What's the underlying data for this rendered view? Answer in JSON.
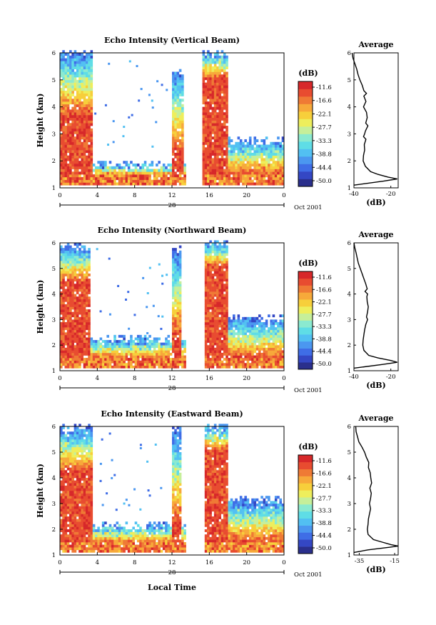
{
  "figure": {
    "date_label": "Oct 2001",
    "local_time_label": "Local Time",
    "day_label": "28",
    "colorbar_unit": "(dB)",
    "average_title": "Average",
    "average_xlabel": "(dB)",
    "ylabel": "Height (km)"
  },
  "colorbar": {
    "ticks": [
      "-11.6",
      "-16.6",
      "-22.1",
      "-27.7",
      "-33.3",
      "-38.8",
      "-44.4",
      "-50.0"
    ],
    "colors": [
      "#2a2f8c",
      "#3447c4",
      "#3f6de6",
      "#4b97f0",
      "#52c0f2",
      "#5fdde6",
      "#8bead0",
      "#c6ef9a",
      "#eeee5c",
      "#f7cf3b",
      "#f7a93a",
      "#ef7a35",
      "#e84c30",
      "#d7282a"
    ]
  },
  "chart_data": [
    {
      "type": "heatmap",
      "title": "Echo Intensity (Vertical Beam)",
      "ylabel": "Height (km)",
      "xticks": [
        "0",
        "4",
        "8",
        "12",
        "16",
        "20",
        "0"
      ],
      "yticks": [
        "1",
        "2",
        "3",
        "4",
        "5",
        "6"
      ],
      "xlim": [
        0,
        24
      ],
      "ylim": [
        1,
        6
      ],
      "colorbar_range_db": [
        -50.0,
        -11.6
      ],
      "echo_regions": [
        {
          "start_h": 0.0,
          "end_h": 3.4,
          "top_km": 6.0,
          "core_top_km": 3.6
        },
        {
          "start_h": 3.5,
          "end_h": 13.5,
          "top_km": 1.8,
          "core_top_km": 1.4
        },
        {
          "start_h": 12.0,
          "end_h": 13.2,
          "top_km": 5.3,
          "core_top_km": 2.2
        },
        {
          "start_h": 15.2,
          "end_h": 17.8,
          "top_km": 6.0,
          "core_top_km": 5.0
        },
        {
          "start_h": 17.8,
          "end_h": 24.0,
          "top_km": 2.7,
          "core_top_km": 1.4
        }
      ]
    },
    {
      "type": "line",
      "title": "Average",
      "xlabel": "(dB)",
      "ylabel": "Height (km)",
      "xticks": [
        "-40",
        "-20"
      ],
      "yticks": [
        "1",
        "2",
        "3",
        "4",
        "5",
        "6"
      ],
      "xlim": [
        -40,
        -16
      ],
      "ylim": [
        1,
        6
      ],
      "series": [
        {
          "points": [
            [
              -41.0,
              6.0
            ],
            [
              -40.5,
              5.8
            ],
            [
              -39.5,
              5.6
            ],
            [
              -38.5,
              5.4
            ],
            [
              -37.8,
              5.2
            ],
            [
              -36.8,
              5.0
            ],
            [
              -35.5,
              4.8
            ],
            [
              -34.6,
              4.6
            ],
            [
              -33.2,
              4.5
            ],
            [
              -34.6,
              4.4
            ],
            [
              -33.5,
              4.2
            ],
            [
              -34.8,
              4.0
            ],
            [
              -33.2,
              3.8
            ],
            [
              -32.8,
              3.6
            ],
            [
              -33.6,
              3.4
            ],
            [
              -32.4,
              3.3
            ],
            [
              -33.8,
              3.1
            ],
            [
              -34.2,
              3.0
            ],
            [
              -34.8,
              2.9
            ],
            [
              -33.5,
              2.8
            ],
            [
              -34.4,
              2.6
            ],
            [
              -34.2,
              2.4
            ],
            [
              -34.8,
              2.2
            ],
            [
              -35.0,
              2.0
            ],
            [
              -33.8,
              1.8
            ],
            [
              -31.0,
              1.6
            ],
            [
              -27.0,
              1.5
            ],
            [
              -21.5,
              1.4
            ],
            [
              -16.5,
              1.33
            ],
            [
              -24.0,
              1.25
            ],
            [
              -40.0,
              1.1
            ]
          ]
        }
      ]
    },
    {
      "type": "heatmap",
      "title": "Echo Intensity (Northward Beam)",
      "ylabel": "Height (km)",
      "xticks": [
        "0",
        "4",
        "8",
        "12",
        "16",
        "20",
        "0"
      ],
      "yticks": [
        "1",
        "2",
        "3",
        "4",
        "5",
        "6"
      ],
      "xlim": [
        0,
        24
      ],
      "ylim": [
        1,
        6
      ],
      "colorbar_range_db": [
        -50.0,
        -11.6
      ],
      "echo_regions": [
        {
          "start_h": 0.0,
          "end_h": 3.2,
          "top_km": 5.8,
          "core_top_km": 4.4
        },
        {
          "start_h": 3.2,
          "end_h": 13.5,
          "top_km": 2.2,
          "core_top_km": 1.4
        },
        {
          "start_h": 12.0,
          "end_h": 13.0,
          "top_km": 5.7,
          "core_top_km": 2.2
        },
        {
          "start_h": 15.3,
          "end_h": 17.8,
          "top_km": 6.0,
          "core_top_km": 5.0
        },
        {
          "start_h": 17.8,
          "end_h": 24.0,
          "top_km": 3.0,
          "core_top_km": 1.4
        }
      ]
    },
    {
      "type": "line",
      "title": "Average",
      "xlabel": "(dB)",
      "ylabel": "Height (km)",
      "xticks": [
        "-40",
        "-20"
      ],
      "yticks": [
        "1",
        "2",
        "3",
        "4",
        "5",
        "6"
      ],
      "xlim": [
        -40,
        -16
      ],
      "ylim": [
        1,
        6
      ],
      "series": [
        {
          "points": [
            [
              -40.0,
              6.0
            ],
            [
              -39.5,
              5.8
            ],
            [
              -38.8,
              5.6
            ],
            [
              -38.2,
              5.4
            ],
            [
              -37.6,
              5.2
            ],
            [
              -36.6,
              5.0
            ],
            [
              -35.6,
              4.8
            ],
            [
              -34.6,
              4.6
            ],
            [
              -33.6,
              4.4
            ],
            [
              -32.8,
              4.2
            ],
            [
              -34.0,
              4.1
            ],
            [
              -32.6,
              4.0
            ],
            [
              -33.0,
              3.9
            ],
            [
              -32.8,
              3.7
            ],
            [
              -32.2,
              3.5
            ],
            [
              -32.6,
              3.3
            ],
            [
              -33.2,
              3.1
            ],
            [
              -32.6,
              3.0
            ],
            [
              -33.6,
              2.8
            ],
            [
              -34.2,
              2.6
            ],
            [
              -34.6,
              2.4
            ],
            [
              -35.0,
              2.2
            ],
            [
              -35.2,
              2.0
            ],
            [
              -34.6,
              1.8
            ],
            [
              -32.0,
              1.6
            ],
            [
              -27.0,
              1.5
            ],
            [
              -20.0,
              1.4
            ],
            [
              -16.5,
              1.33
            ],
            [
              -24.0,
              1.25
            ],
            [
              -40.0,
              1.1
            ]
          ]
        }
      ]
    },
    {
      "type": "heatmap",
      "title": "Echo Intensity (Eastward Beam)",
      "ylabel": "Height (km)",
      "xticks": [
        "0",
        "4",
        "8",
        "12",
        "16",
        "20",
        "0"
      ],
      "yticks": [
        "1",
        "2",
        "3",
        "4",
        "5",
        "6"
      ],
      "xlim": [
        0,
        24
      ],
      "ylim": [
        1,
        6
      ],
      "colorbar_range_db": [
        -50.0,
        -11.6
      ],
      "echo_regions": [
        {
          "start_h": 0.0,
          "end_h": 3.4,
          "top_km": 5.9,
          "core_top_km": 4.2
        },
        {
          "start_h": 3.2,
          "end_h": 13.5,
          "top_km": 2.1,
          "core_top_km": 1.4
        },
        {
          "start_h": 12.0,
          "end_h": 13.0,
          "top_km": 5.8,
          "core_top_km": 2.2
        },
        {
          "start_h": 15.3,
          "end_h": 17.8,
          "top_km": 6.0,
          "core_top_km": 5.0
        },
        {
          "start_h": 17.8,
          "end_h": 24.0,
          "top_km": 3.1,
          "core_top_km": 1.4
        }
      ]
    },
    {
      "type": "line",
      "title": "Average",
      "xlabel": "(dB)",
      "ylabel": "Height (km)",
      "xticks": [
        "-35",
        "-15"
      ],
      "yticks": [
        "1",
        "2",
        "3",
        "4",
        "5",
        "6"
      ],
      "xlim": [
        -38,
        -13
      ],
      "ylim": [
        1,
        6
      ],
      "series": [
        {
          "points": [
            [
              -37.0,
              6.0
            ],
            [
              -36.8,
              5.8
            ],
            [
              -36.0,
              5.6
            ],
            [
              -35.2,
              5.4
            ],
            [
              -33.5,
              5.2
            ],
            [
              -32.0,
              5.0
            ],
            [
              -31.0,
              4.8
            ],
            [
              -29.6,
              4.6
            ],
            [
              -29.8,
              4.4
            ],
            [
              -28.8,
              4.2
            ],
            [
              -28.5,
              4.0
            ],
            [
              -28.0,
              3.8
            ],
            [
              -29.0,
              3.6
            ],
            [
              -28.2,
              3.4
            ],
            [
              -28.6,
              3.2
            ],
            [
              -29.2,
              3.0
            ],
            [
              -28.6,
              2.8
            ],
            [
              -29.2,
              2.6
            ],
            [
              -29.8,
              2.4
            ],
            [
              -30.0,
              2.2
            ],
            [
              -30.4,
              2.0
            ],
            [
              -30.0,
              1.8
            ],
            [
              -27.0,
              1.6
            ],
            [
              -22.0,
              1.5
            ],
            [
              -17.0,
              1.4
            ],
            [
              -13.0,
              1.35
            ],
            [
              -18.0,
              1.3
            ],
            [
              -30.0,
              1.2
            ],
            [
              -38.0,
              1.1
            ]
          ]
        }
      ]
    }
  ]
}
